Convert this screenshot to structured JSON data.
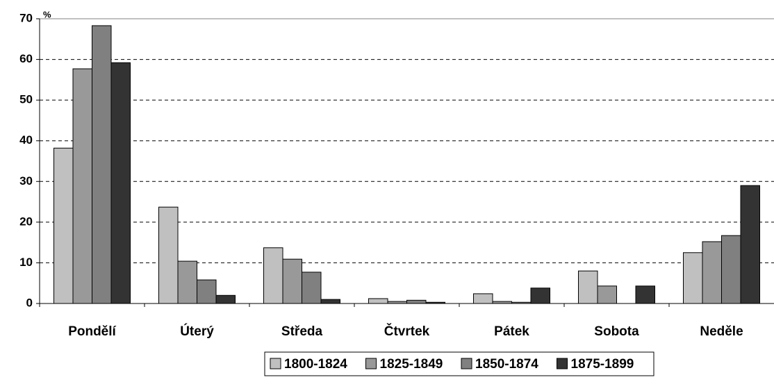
{
  "chart_data": {
    "type": "bar",
    "y_label": "%",
    "categories": [
      "Pondělí",
      "Úterý",
      "Středa",
      "Čtvrtek",
      "Pátek",
      "Sobota",
      "Neděle"
    ],
    "series": [
      {
        "name": "1800-1824",
        "color": "#c0c0c0",
        "values": [
          38.2,
          23.7,
          13.7,
          1.2,
          2.4,
          8.0,
          12.5
        ]
      },
      {
        "name": "1825-1849",
        "color": "#999999",
        "values": [
          57.7,
          10.4,
          10.9,
          0.5,
          0.5,
          4.3,
          15.2
        ]
      },
      {
        "name": "1850-1874",
        "color": "#808080",
        "values": [
          68.3,
          5.8,
          7.7,
          0.8,
          0.3,
          0,
          16.7
        ]
      },
      {
        "name": "1875-1899",
        "color": "#333333",
        "values": [
          59.2,
          2.0,
          1.0,
          0.3,
          3.8,
          4.3,
          29.0
        ]
      }
    ],
    "ylim": [
      0,
      70
    ],
    "yticks": [
      0,
      10,
      20,
      30,
      40,
      50,
      60,
      70
    ],
    "grid": true,
    "legend": "bottom"
  }
}
